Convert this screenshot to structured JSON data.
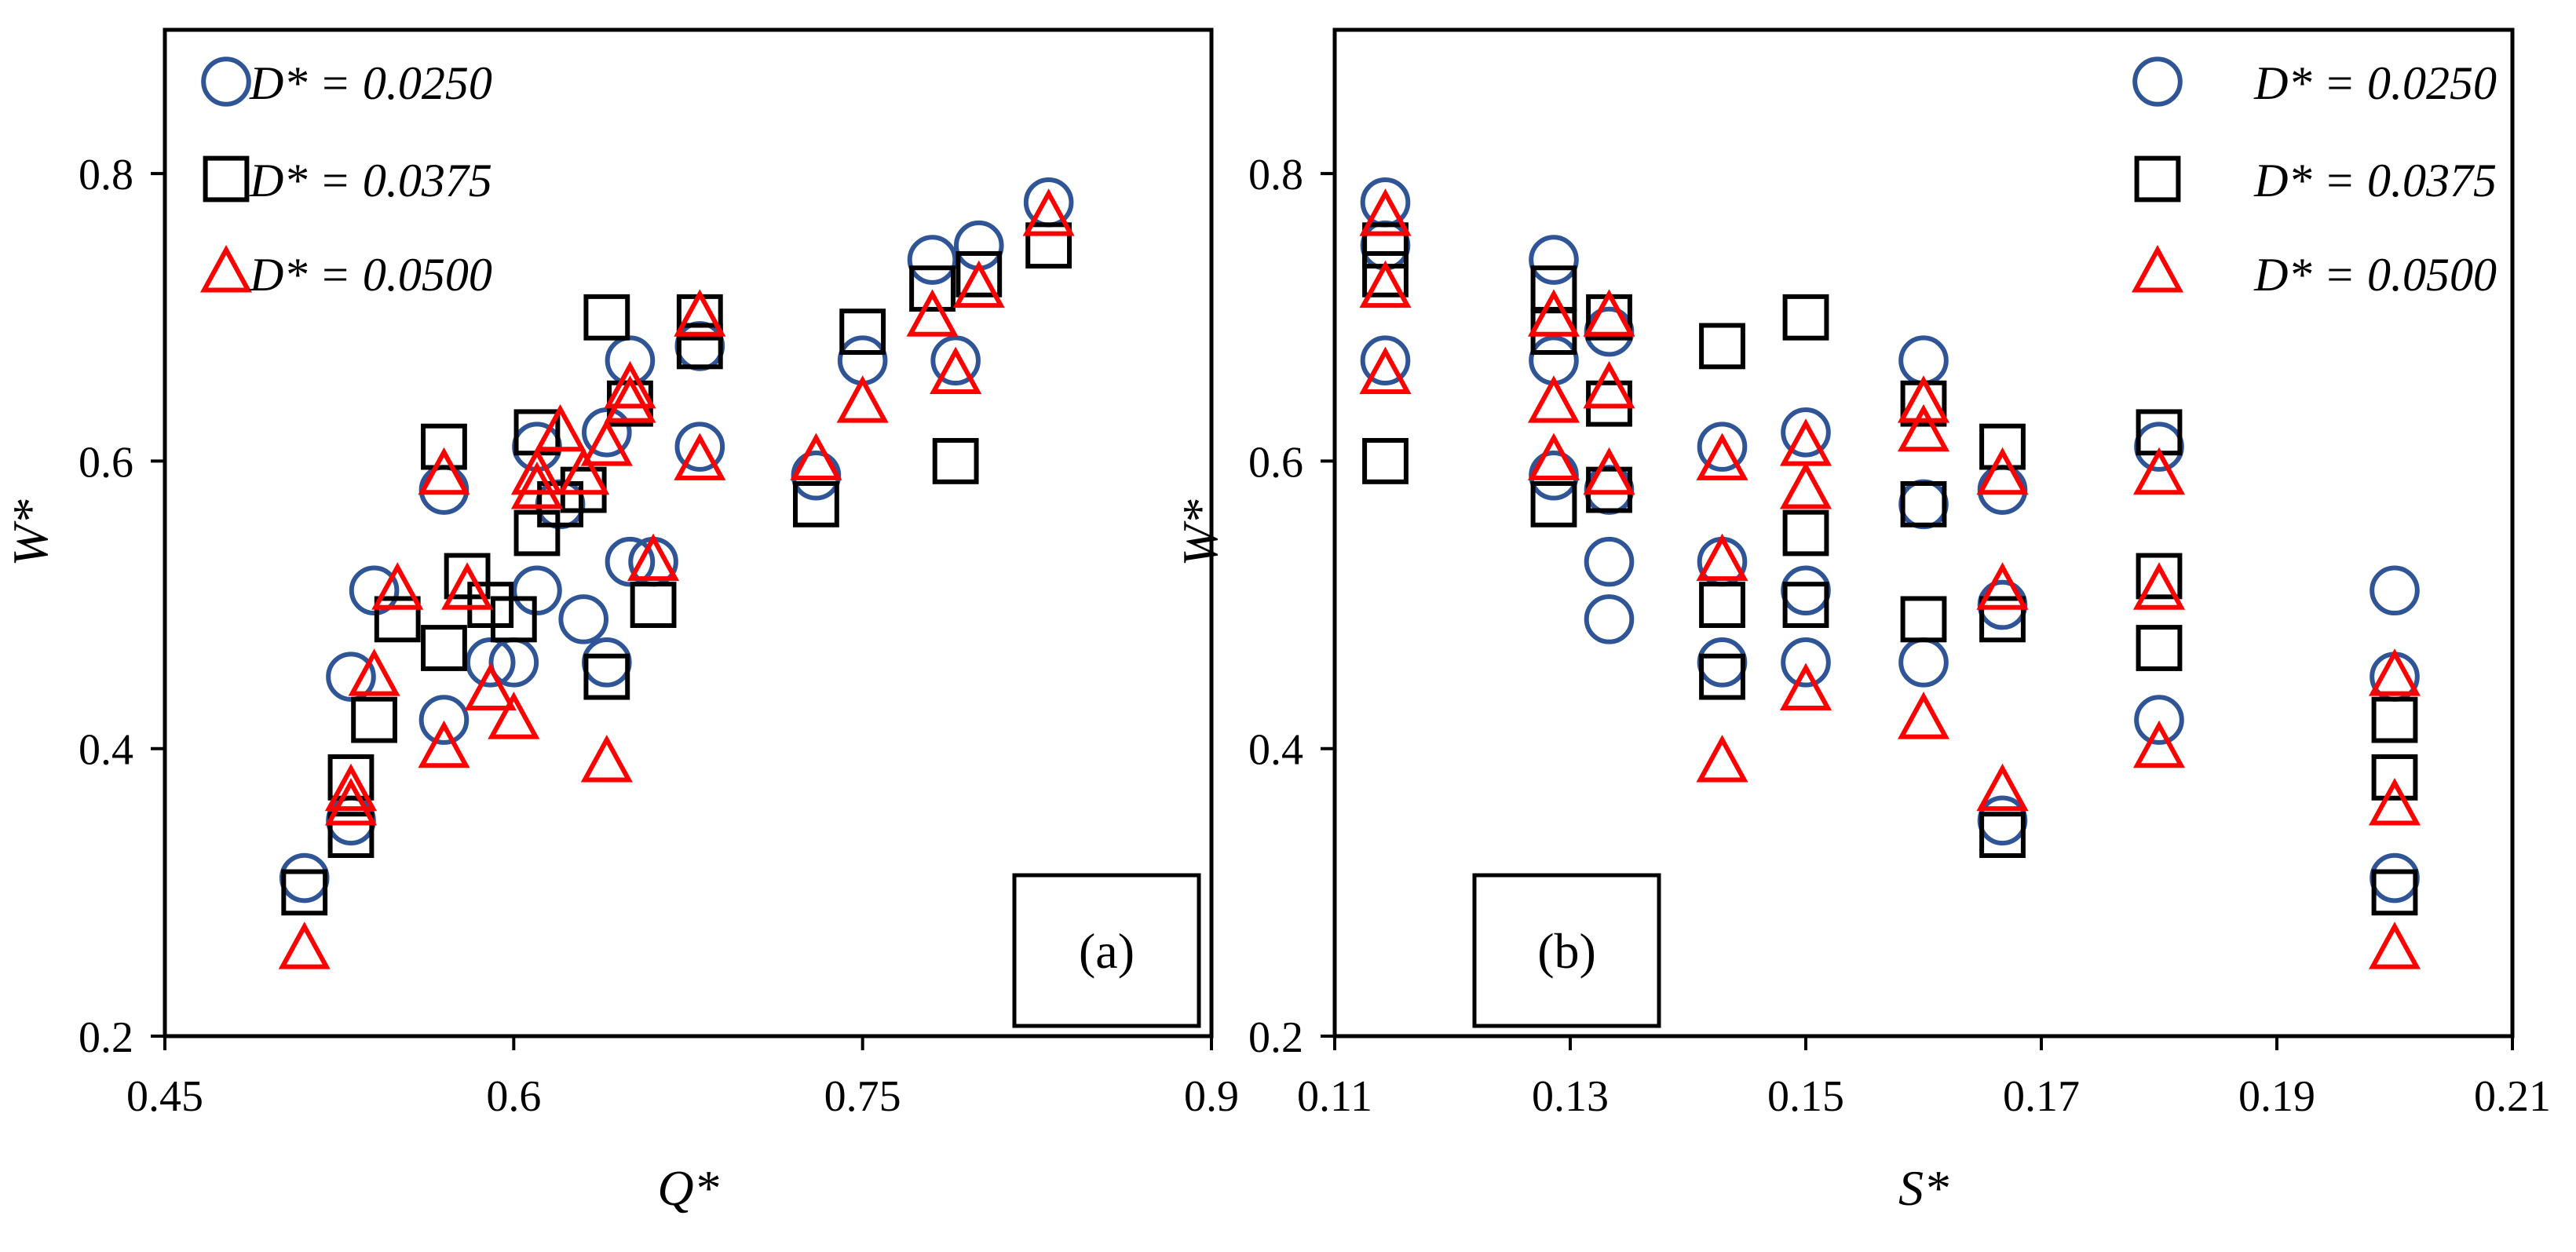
{
  "colors": {
    "circle": "#2F5597",
    "square": "#000000",
    "triangle": "#FF0000",
    "frame": "#000000"
  },
  "chart_data": [
    {
      "type": "scatter",
      "panel_label": "(a)",
      "xlabel": "Q*",
      "ylabel": "W*",
      "xlim": [
        0.45,
        0.9
      ],
      "ylim": [
        0.2,
        0.9
      ],
      "xticks": [
        0.45,
        0.6,
        0.75,
        0.9
      ],
      "xtick_labels": [
        "0.45",
        "0.6",
        "0.75",
        "0.9"
      ],
      "yticks": [
        0.2,
        0.4,
        0.6,
        0.8
      ],
      "ytick_labels": [
        "0.2",
        "0.4",
        "0.6",
        "0.8"
      ],
      "legend_position": "top-left",
      "series": [
        {
          "name": "D* = 0.0250",
          "marker": "circle",
          "x": [
            0.51,
            0.53,
            0.53,
            0.54,
            0.57,
            0.57,
            0.59,
            0.6,
            0.61,
            0.61,
            0.62,
            0.63,
            0.64,
            0.64,
            0.65,
            0.65,
            0.66,
            0.68,
            0.68,
            0.73,
            0.75,
            0.78,
            0.79,
            0.8,
            0.83
          ],
          "y": [
            0.31,
            0.35,
            0.45,
            0.51,
            0.58,
            0.42,
            0.46,
            0.46,
            0.51,
            0.61,
            0.57,
            0.49,
            0.62,
            0.46,
            0.67,
            0.53,
            0.53,
            0.61,
            0.68,
            0.59,
            0.67,
            0.74,
            0.67,
            0.75,
            0.78
          ]
        },
        {
          "name": "D* = 0.0375",
          "marker": "square",
          "x": [
            0.51,
            0.53,
            0.53,
            0.54,
            0.55,
            0.57,
            0.57,
            0.58,
            0.59,
            0.6,
            0.61,
            0.61,
            0.62,
            0.63,
            0.64,
            0.64,
            0.65,
            0.66,
            0.68,
            0.68,
            0.73,
            0.75,
            0.78,
            0.79,
            0.8,
            0.83
          ],
          "y": [
            0.3,
            0.34,
            0.38,
            0.42,
            0.49,
            0.61,
            0.47,
            0.52,
            0.5,
            0.49,
            0.62,
            0.55,
            0.57,
            0.58,
            0.7,
            0.45,
            0.64,
            0.5,
            0.7,
            0.68,
            0.57,
            0.69,
            0.72,
            0.6,
            0.73,
            0.75
          ]
        },
        {
          "name": "D* = 0.0500",
          "marker": "triangle",
          "x": [
            0.51,
            0.53,
            0.53,
            0.54,
            0.55,
            0.57,
            0.57,
            0.58,
            0.59,
            0.6,
            0.61,
            0.61,
            0.62,
            0.63,
            0.64,
            0.64,
            0.65,
            0.65,
            0.66,
            0.68,
            0.68,
            0.73,
            0.75,
            0.78,
            0.79,
            0.8,
            0.83
          ],
          "y": [
            0.26,
            0.36,
            0.37,
            0.45,
            0.51,
            0.59,
            0.4,
            0.51,
            0.44,
            0.42,
            0.58,
            0.59,
            0.62,
            0.59,
            0.61,
            0.39,
            0.65,
            0.64,
            0.53,
            0.7,
            0.6,
            0.6,
            0.64,
            0.7,
            0.66,
            0.72,
            0.77
          ]
        }
      ]
    },
    {
      "type": "scatter",
      "panel_label": "(b)",
      "xlabel": "S*",
      "ylabel": "W*",
      "xlim": [
        0.11,
        0.21
      ],
      "ylim": [
        0.2,
        0.9
      ],
      "xticks": [
        0.11,
        0.13,
        0.15,
        0.17,
        0.19,
        0.21
      ],
      "xtick_labels": [
        "0.11",
        "0.13",
        "0.15",
        "0.17",
        "0.19",
        "0.21"
      ],
      "yticks": [
        0.2,
        0.4,
        0.6,
        0.8
      ],
      "ytick_labels": [
        "0.2",
        "0.4",
        "0.6",
        "0.8"
      ],
      "legend_position": "top-right",
      "series": [
        {
          "name": "D* = 0.0250",
          "marker": "circle",
          "x": [
            0.1143,
            0.1143,
            0.1143,
            0.1286,
            0.1286,
            0.1286,
            0.1333,
            0.1333,
            0.1333,
            0.1333,
            0.1429,
            0.1429,
            0.1429,
            0.15,
            0.15,
            0.15,
            0.16,
            0.16,
            0.16,
            0.1667,
            0.1667,
            0.1667,
            0.18,
            0.18,
            0.2,
            0.2,
            0.2
          ],
          "y": [
            0.78,
            0.75,
            0.67,
            0.74,
            0.67,
            0.59,
            0.69,
            0.53,
            0.49,
            0.58,
            0.61,
            0.53,
            0.46,
            0.62,
            0.51,
            0.46,
            0.67,
            0.57,
            0.46,
            0.58,
            0.5,
            0.35,
            0.61,
            0.42,
            0.51,
            0.45,
            0.31
          ]
        },
        {
          "name": "D* = 0.0375",
          "marker": "square",
          "x": [
            0.1143,
            0.1143,
            0.1143,
            0.1286,
            0.1286,
            0.1286,
            0.1333,
            0.1333,
            0.1333,
            0.1429,
            0.1429,
            0.1429,
            0.15,
            0.15,
            0.15,
            0.16,
            0.16,
            0.16,
            0.1667,
            0.1667,
            0.1667,
            0.18,
            0.18,
            0.18,
            0.2,
            0.2,
            0.2
          ],
          "y": [
            0.75,
            0.73,
            0.6,
            0.72,
            0.69,
            0.57,
            0.7,
            0.64,
            0.58,
            0.68,
            0.5,
            0.45,
            0.7,
            0.55,
            0.5,
            0.64,
            0.57,
            0.49,
            0.61,
            0.49,
            0.34,
            0.62,
            0.52,
            0.47,
            0.42,
            0.38,
            0.3
          ]
        },
        {
          "name": "D* = 0.0500",
          "marker": "triangle",
          "x": [
            0.1143,
            0.1143,
            0.1143,
            0.1286,
            0.1286,
            0.1286,
            0.1333,
            0.1333,
            0.1333,
            0.1429,
            0.1429,
            0.1429,
            0.15,
            0.15,
            0.15,
            0.16,
            0.16,
            0.16,
            0.1667,
            0.1667,
            0.1667,
            0.18,
            0.18,
            0.18,
            0.2,
            0.2,
            0.2
          ],
          "y": [
            0.77,
            0.72,
            0.66,
            0.7,
            0.64,
            0.6,
            0.7,
            0.65,
            0.59,
            0.6,
            0.53,
            0.39,
            0.61,
            0.58,
            0.44,
            0.64,
            0.62,
            0.42,
            0.59,
            0.51,
            0.37,
            0.59,
            0.51,
            0.4,
            0.45,
            0.36,
            0.26
          ]
        }
      ]
    }
  ]
}
